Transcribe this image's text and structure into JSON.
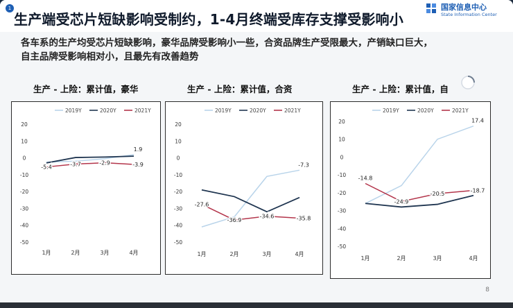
{
  "slide": {
    "title": "生产端受芯片短缺影响受制约，1-4月终端受库存支撑受影响小",
    "summary_line1": "各车系的生产均受芯片短缺影响，豪华品牌受影响小一些，合资品牌生产受限最大，产销缺口巨大，",
    "summary_line2": "自主品牌受影响相对小，且最先有改善趋势",
    "page_number": "8",
    "page_badge": "1"
  },
  "logo": {
    "name_cn": "国家信息中心",
    "name_en": "State Information Center",
    "icon": "sic-logo-icon"
  },
  "colors": {
    "y2019": "#b9d4ea",
    "y2020": "#1f3550",
    "y2021": "#b3344a",
    "accent": "#1e5fb4"
  },
  "chart_data": [
    {
      "type": "line",
      "title": "生产 - 上险：累计值，豪华",
      "categories": [
        "1月",
        "2月",
        "3月",
        "4月"
      ],
      "ylim": [
        -50,
        20
      ],
      "yticks": [
        20,
        10,
        0,
        -10,
        -20,
        -30,
        -40,
        -50
      ],
      "legend": "top",
      "series": [
        {
          "name": "2019Y",
          "values": [
            -2.5,
            -2.0,
            -0.5,
            1.9
          ],
          "labels": [
            "",
            "",
            "",
            "1.9"
          ]
        },
        {
          "name": "2020Y",
          "values": [
            -3.0,
            0.2,
            0.5,
            1.0
          ],
          "labels": [
            "",
            "",
            "",
            ""
          ]
        },
        {
          "name": "2021Y",
          "values": [
            -5.4,
            -3.7,
            -2.9,
            -3.9
          ],
          "labels": [
            "-5.4",
            "-3.7",
            "-2.9",
            "-3.9"
          ]
        }
      ]
    },
    {
      "type": "line",
      "title": "生产 - 上险：累计值，合资",
      "categories": [
        "1月",
        "2月",
        "3月",
        "4月"
      ],
      "ylim": [
        -50,
        20
      ],
      "yticks": [
        20,
        10,
        0,
        -10,
        -20,
        -30,
        -40,
        -50
      ],
      "legend": "top",
      "series": [
        {
          "name": "2019Y",
          "values": [
            -41.0,
            -35.0,
            -11.0,
            -7.3
          ],
          "labels": [
            "",
            "",
            "",
            "-7.3"
          ]
        },
        {
          "name": "2020Y",
          "values": [
            -19.0,
            -23.0,
            -32.0,
            -23.5
          ],
          "labels": [
            "",
            "",
            "",
            ""
          ]
        },
        {
          "name": "2021Y",
          "values": [
            -27.6,
            -36.9,
            -34.6,
            -35.8
          ],
          "labels": [
            "-27.6",
            "-36.9",
            "-34.6",
            "-35.8"
          ]
        }
      ]
    },
    {
      "type": "line",
      "title": "生产 - 上险：累计值，自",
      "categories": [
        "1月",
        "2月",
        "3月",
        "4月"
      ],
      "ylim": [
        -50,
        20
      ],
      "yticks": [
        20,
        10,
        0,
        -10,
        -20,
        -30,
        -40,
        -50
      ],
      "legend": "top",
      "series": [
        {
          "name": "2019Y",
          "values": [
            -26.0,
            -16.0,
            10.0,
            17.4
          ],
          "labels": [
            "",
            "",
            "",
            "17.4"
          ]
        },
        {
          "name": "2020Y",
          "values": [
            -26.0,
            -28.0,
            -26.5,
            -21.5
          ],
          "labels": [
            "",
            "",
            "",
            ""
          ]
        },
        {
          "name": "2021Y",
          "values": [
            -14.8,
            -24.9,
            -20.5,
            -18.7
          ],
          "labels": [
            "-14.8",
            "-24.9",
            "-20.5",
            "-18.7"
          ]
        }
      ]
    }
  ]
}
